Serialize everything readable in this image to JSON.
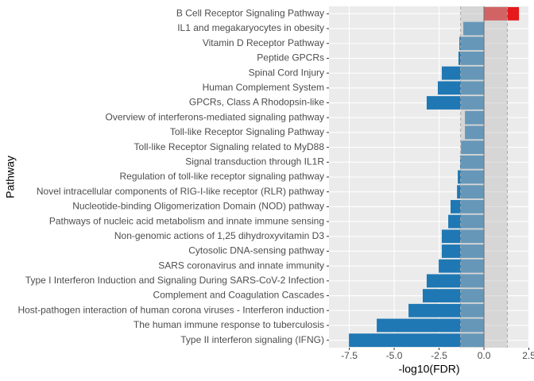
{
  "chart_data": {
    "type": "bar",
    "orientation": "horizontal",
    "x_label": "-log10(FDR)",
    "y_label": "Pathway",
    "categories": [
      "B Cell Receptor Signaling Pathway",
      "IL1 and megakaryocytes in obesity",
      "Vitamin D Receptor Pathway",
      "Peptide GPCRs",
      "Spinal Cord Injury",
      "Human Complement System",
      "GPCRs, Class A Rhodopsin-like",
      "Overview of interferons-mediated signaling pathway",
      "Toll-like Receptor Signaling Pathway",
      "Toll-like Receptor Signaling related to MyD88",
      "Signal transduction through IL1R",
      "Regulation of toll-like receptor signaling pathway",
      "Novel intracellular components of RIG-I-like receptor (RLR) pathway",
      "Nucleotide-binding Oligomerization Domain (NOD) pathway",
      "Pathways of nucleic acid metabolism and innate immune sensing",
      "Non-genomic actions of 1,25 dihydroxyvitamin D3",
      "Cytosolic DNA-sensing pathway",
      "SARS coronavirus and innate immunity",
      "Type I Interferon Induction and Signaling During SARS-CoV-2 Infection",
      "Complement and Coagulation Cascades",
      "Host-pathogen interaction of human corona viruses - Interferon induction",
      "The human immune response to tuberculosis",
      "Type II interferon signaling (IFNG)"
    ],
    "values": [
      1.95,
      -1.15,
      -1.37,
      -1.42,
      -2.35,
      -2.57,
      -3.19,
      -1.06,
      -1.06,
      -1.28,
      -1.33,
      -1.46,
      -1.5,
      -1.86,
      -1.99,
      -2.35,
      -2.35,
      -2.52,
      -3.19,
      -3.41,
      -4.2,
      -5.97,
      -7.52
    ],
    "colors": [
      "#e41a1c",
      "#1f78b4",
      "#1f78b4",
      "#1f78b4",
      "#1f78b4",
      "#1f78b4",
      "#1f78b4",
      "#1f78b4",
      "#1f78b4",
      "#1f78b4",
      "#1f78b4",
      "#1f78b4",
      "#1f78b4",
      "#1f78b4",
      "#1f78b4",
      "#1f78b4",
      "#1f78b4",
      "#1f78b4",
      "#1f78b4",
      "#1f78b4",
      "#1f78b4",
      "#1f78b4",
      "#1f78b4"
    ],
    "xlim": [
      -8.63,
      2.52
    ],
    "xticks": [
      -7.5,
      {
        "value": -5,
        "label": "-5.0"
      },
      -2.5,
      {
        "value": 0,
        "label": "0.0"
      },
      2.5
    ],
    "threshold_lines": [
      -1.3,
      1.3
    ],
    "grid": true
  }
}
